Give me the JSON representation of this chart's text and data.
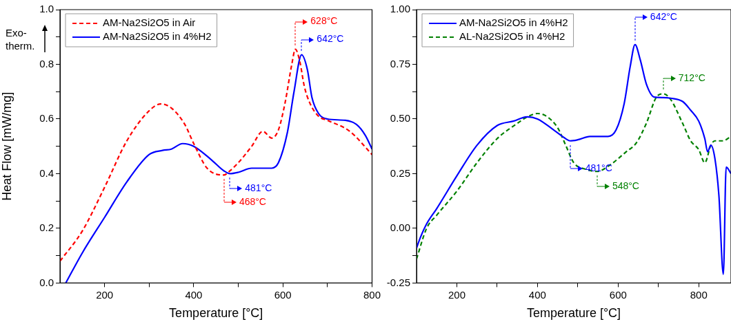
{
  "chart_data": [
    {
      "type": "line",
      "xlabel": "Temperature [°C]",
      "ylabel": "Heat Flow [mW/mg]",
      "legend": "top left",
      "marker": "none",
      "xlim": [
        100,
        800
      ],
      "xticks": [
        {
          "value": 200,
          "label": "200"
        },
        {
          "value": 300,
          "label": null
        },
        {
          "value": 400,
          "label": "400"
        },
        {
          "value": 500,
          "label": null
        },
        {
          "value": 600,
          "label": "600"
        },
        {
          "value": 700,
          "label": null
        },
        {
          "value": 800,
          "label": "800"
        }
      ],
      "ylim": [
        0,
        1
      ],
      "yticks": [
        {
          "value": 0,
          "label": "0.0"
        },
        {
          "value": 0.1,
          "label": null
        },
        {
          "value": 0.2,
          "label": "0.2"
        },
        {
          "value": 0.3,
          "label": null
        },
        {
          "value": 0.4,
          "label": "0.4"
        },
        {
          "value": 0.5,
          "label": null
        },
        {
          "value": 0.6,
          "label": "0.6"
        },
        {
          "value": 0.7,
          "label": null
        },
        {
          "value": 0.8,
          "label": "0.8"
        },
        {
          "value": 0.9,
          "label": null
        },
        {
          "value": 1,
          "label": "1.0"
        }
      ],
      "series": [
        {
          "name": "AM-Na2Si2O5 in Air",
          "color": "#ff0000",
          "line_style": "dashed",
          "x": [
            100,
            150,
            200,
            250,
            300,
            326,
            350,
            380,
            400,
            430,
            468,
            481,
            500,
            530,
            555,
            575,
            590,
            605,
            620,
            628,
            638,
            648,
            660,
            680,
            700,
            750,
            800
          ],
          "values": [
            0.08,
            0.19,
            0.35,
            0.52,
            0.63,
            0.655,
            0.64,
            0.58,
            0.51,
            0.42,
            0.395,
            0.41,
            0.44,
            0.5,
            0.555,
            0.53,
            0.56,
            0.66,
            0.8,
            0.855,
            0.81,
            0.72,
            0.66,
            0.61,
            0.595,
            0.555,
            0.47
          ]
        },
        {
          "name": "AM-Na2Si2O5 in 4%H2",
          "color": "#0000ff",
          "line_style": "solid",
          "x": [
            113,
            150,
            200,
            250,
            300,
            330,
            350,
            375,
            400,
            440,
            468,
            481,
            500,
            530,
            575,
            590,
            610,
            625,
            642,
            655,
            665,
            680,
            700,
            740,
            765,
            785,
            800
          ],
          "values": [
            0,
            0.11,
            0.24,
            0.37,
            0.47,
            0.485,
            0.49,
            0.51,
            0.5,
            0.45,
            0.41,
            0.4,
            0.405,
            0.42,
            0.42,
            0.44,
            0.55,
            0.7,
            0.835,
            0.78,
            0.68,
            0.62,
            0.6,
            0.595,
            0.58,
            0.54,
            0.49
          ]
        }
      ],
      "annotations": [
        "Exo-therm.",
        {
          "text": "628°C",
          "x": 628,
          "y": 0.855
        },
        {
          "text": "642°C",
          "x": 642,
          "y": 0.835
        },
        {
          "text": "481°C",
          "x": 481,
          "y": 0.4
        },
        {
          "text": "468°C",
          "x": 468,
          "y": 0.395
        }
      ]
    },
    {
      "type": "line",
      "xlabel": "Temperature [°C]",
      "legend": "top left",
      "marker": "none",
      "xlim": [
        100,
        880
      ],
      "xticks": [
        {
          "value": 200,
          "label": "200"
        },
        {
          "value": 300,
          "label": null
        },
        {
          "value": 400,
          "label": "400"
        },
        {
          "value": 500,
          "label": null
        },
        {
          "value": 600,
          "label": "600"
        },
        {
          "value": 700,
          "label": null
        },
        {
          "value": 800,
          "label": "800"
        }
      ],
      "ylim": [
        -0.25,
        1
      ],
      "yticks": [
        {
          "value": -0.25,
          "label": "-0.25"
        },
        {
          "value": -0.125,
          "label": null
        },
        {
          "value": 0,
          "label": "0.00"
        },
        {
          "value": 0.125,
          "label": null
        },
        {
          "value": 0.25,
          "label": "0.25"
        },
        {
          "value": 0.375,
          "label": null
        },
        {
          "value": 0.5,
          "label": "0.50"
        },
        {
          "value": 0.625,
          "label": null
        },
        {
          "value": 0.75,
          "label": "0.75"
        },
        {
          "value": 0.875,
          "label": null
        },
        {
          "value": 1,
          "label": "1.00"
        }
      ],
      "series": [
        {
          "name": "AM-Na2Si2O5 in 4%H2",
          "color": "#0000ff",
          "line_style": "solid",
          "x": [
            100,
            110,
            125,
            150,
            200,
            250,
            300,
            340,
            375,
            400,
            440,
            470,
            481,
            500,
            530,
            575,
            595,
            615,
            630,
            642,
            655,
            670,
            690,
            712,
            730,
            760,
            780,
            800,
            815,
            822,
            830,
            840,
            850,
            861,
            868,
            880
          ],
          "values": [
            -0.09,
            -0.04,
            0.02,
            0.09,
            0.24,
            0.38,
            0.47,
            0.49,
            0.51,
            0.5,
            0.45,
            0.41,
            0.4,
            0.405,
            0.42,
            0.42,
            0.45,
            0.57,
            0.74,
            0.84,
            0.77,
            0.66,
            0.6,
            0.598,
            0.595,
            0.58,
            0.54,
            0.49,
            0.41,
            0.35,
            0.38,
            0.32,
            0.15,
            -0.21,
            0.28,
            0.25
          ]
        },
        {
          "name": "AL-Na2Si2O5 in 4%H2",
          "color": "#008000",
          "line_style": "dashed",
          "x": [
            100,
            125,
            150,
            200,
            250,
            300,
            350,
            375,
            400,
            420,
            450,
            470,
            490,
            520,
            548,
            580,
            620,
            645,
            670,
            695,
            712,
            730,
            760,
            780,
            800,
            815,
            830,
            840,
            860,
            880
          ],
          "values": [
            -0.14,
            0,
            0.06,
            0.17,
            0.3,
            0.41,
            0.48,
            0.51,
            0.525,
            0.515,
            0.46,
            0.38,
            0.3,
            0.27,
            0.26,
            0.29,
            0.35,
            0.39,
            0.48,
            0.6,
            0.615,
            0.59,
            0.48,
            0.4,
            0.36,
            0.3,
            0.38,
            0.4,
            0.4,
            0.42
          ]
        }
      ],
      "annotations": [
        {
          "text": "642°C",
          "x": 642,
          "y": 0.84
        },
        {
          "text": "712°C",
          "x": 712,
          "y": 0.615
        },
        {
          "text": "548°C",
          "x": 548,
          "y": 0.26
        },
        {
          "text": "481°C",
          "x": 481,
          "y": 0.4
        }
      ]
    }
  ]
}
